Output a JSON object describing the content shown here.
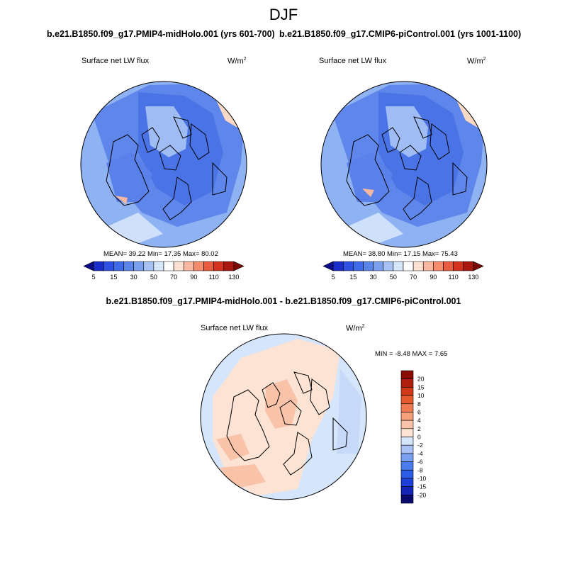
{
  "page": {
    "season": "DJF"
  },
  "chart_data": [
    {
      "type": "heatmap",
      "projection": "north-polar-stereographic",
      "case_title": "b.e21.B1850.f09_g17.PMIP4-midHolo.001 (yrs 601-700)",
      "field_label": "Surface net LW flux",
      "units_base": "W/m",
      "units_exp": "2",
      "stats_text": "MEAN=  39.22  Min=  17.35  Max=  80.02",
      "stats": {
        "mean": 39.22,
        "min": 17.35,
        "max": 80.02
      },
      "colorbar": {
        "orientation": "horizontal",
        "levels": [
          5,
          10,
          15,
          20,
          30,
          40,
          50,
          60,
          70,
          80,
          90,
          100,
          110,
          120,
          130
        ],
        "tick_labels": [
          "5",
          "15",
          "30",
          "50",
          "70",
          "90",
          "110",
          "130"
        ],
        "colors": [
          "#0d0d8a",
          "#1b2ec9",
          "#2f50e0",
          "#3f6be8",
          "#5a86ea",
          "#7aa0ee",
          "#a6c2f4",
          "#d6e6fb",
          "#ffffff",
          "#fde1d0",
          "#f9b7a1",
          "#f48c6d",
          "#e85d3f",
          "#d0341f",
          "#a8180e",
          "#7a0a05"
        ]
      }
    },
    {
      "type": "heatmap",
      "projection": "north-polar-stereographic",
      "case_title": "b.e21.B1850.f09_g17.CMIP6-piControl.001 (yrs 1001-1100)",
      "field_label": "Surface net LW flux",
      "units_base": "W/m",
      "units_exp": "2",
      "stats_text": "MEAN=  38.80  Min=  17.15  Max=  75.43",
      "stats": {
        "mean": 38.8,
        "min": 17.15,
        "max": 75.43
      },
      "colorbar": {
        "orientation": "horizontal",
        "levels": [
          5,
          10,
          15,
          20,
          30,
          40,
          50,
          60,
          70,
          80,
          90,
          100,
          110,
          120,
          130
        ],
        "tick_labels": [
          "5",
          "15",
          "30",
          "50",
          "70",
          "90",
          "110",
          "130"
        ],
        "colors": [
          "#0d0d8a",
          "#1b2ec9",
          "#2f50e0",
          "#3f6be8",
          "#5a86ea",
          "#7aa0ee",
          "#a6c2f4",
          "#d6e6fb",
          "#ffffff",
          "#fde1d0",
          "#f9b7a1",
          "#f48c6d",
          "#e85d3f",
          "#d0341f",
          "#a8180e",
          "#7a0a05"
        ]
      }
    },
    {
      "type": "heatmap",
      "projection": "north-polar-stereographic",
      "case_title": "b.e21.B1850.f09_g17.PMIP4-midHolo.001 - b.e21.B1850.f09_g17.CMIP6-piControl.001",
      "field_label": "Surface net LW flux",
      "units_base": "W/m",
      "units_exp": "2",
      "stats_text": "MIN =  -8.48 MAX =   7.65",
      "stats": {
        "min": -8.48,
        "max": 7.65
      },
      "colorbar": {
        "orientation": "vertical",
        "levels": [
          -20,
          -15,
          -10,
          -8,
          -6,
          -4,
          -2,
          0,
          2,
          4,
          6,
          8,
          10,
          15,
          20
        ],
        "tick_labels": [
          "20",
          "15",
          "10",
          "8",
          "6",
          "4",
          "2",
          "0",
          "-2",
          "-4",
          "-6",
          "-8",
          "-10",
          "-15",
          "-20"
        ],
        "colors": [
          "#0a0a6e",
          "#1424b4",
          "#1e3fd8",
          "#2d5ce6",
          "#4b7ceb",
          "#7a9ff0",
          "#a9c1f5",
          "#d5e5fb",
          "#fde3d4",
          "#f8c3a8",
          "#f4a079",
          "#f07a4f",
          "#e65a30",
          "#cf3a18",
          "#b01f0c",
          "#8a0c04"
        ]
      }
    }
  ]
}
